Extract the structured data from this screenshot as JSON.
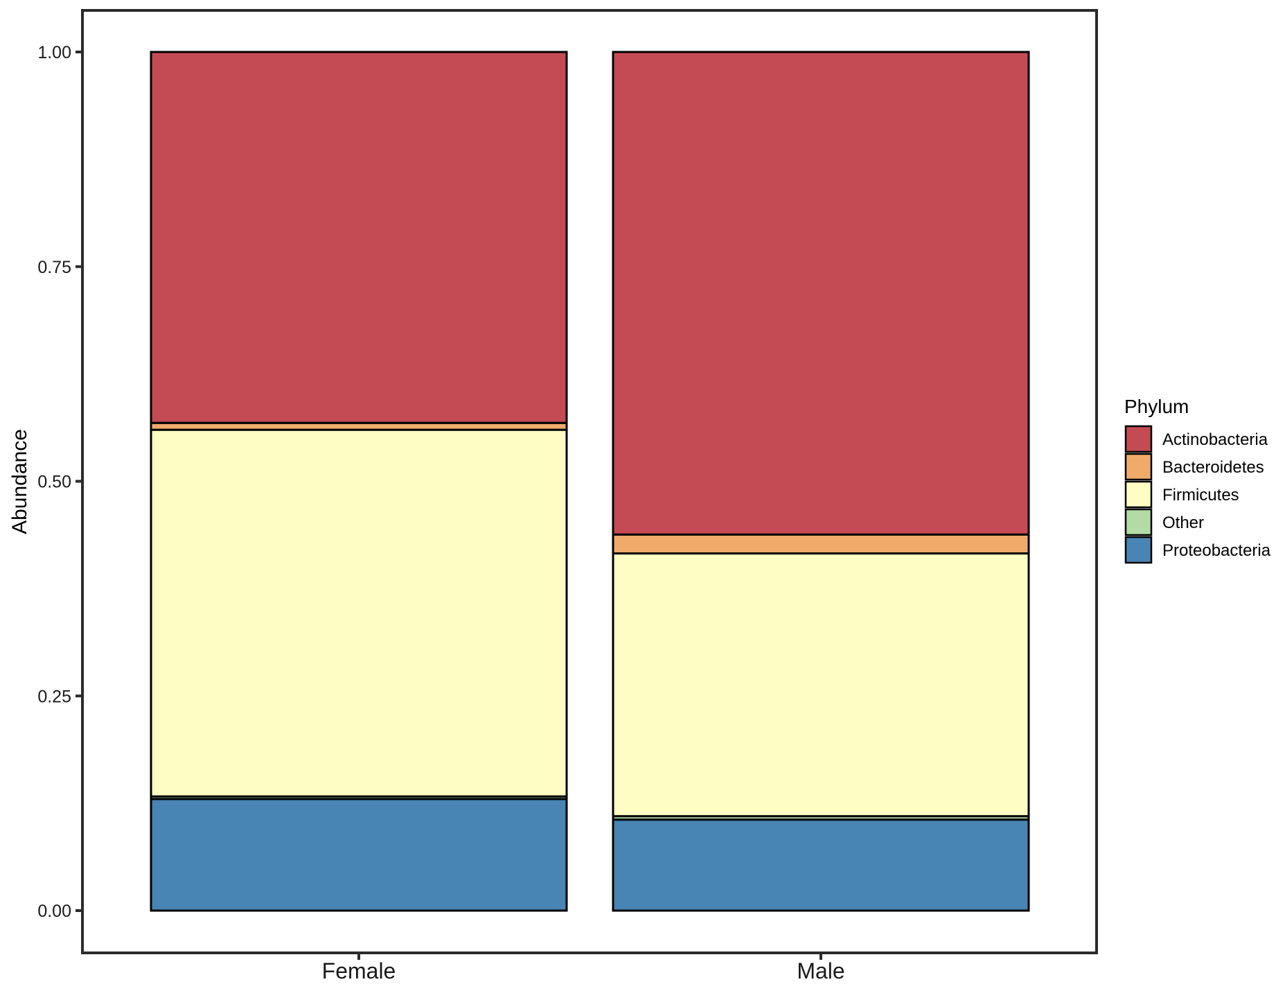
{
  "chart_data": {
    "type": "bar",
    "stacked": true,
    "categories": [
      "Female",
      "Male"
    ],
    "ylabel": "Abundance",
    "xlabel": "",
    "ylim": [
      0,
      1
    ],
    "yticks": [
      "0.00",
      "0.25",
      "0.50",
      "0.75",
      "1.00"
    ],
    "ytick_values": [
      0,
      0.25,
      0.5,
      0.75,
      1.0
    ],
    "legend": {
      "title": "Phylum",
      "position": "right",
      "entries": [
        "Actinobacteria",
        "Bacteroidetes",
        "Firmicutes",
        "Other",
        "Proteobacteria"
      ]
    },
    "series": [
      {
        "name": "Proteobacteria",
        "color": "#4884b4",
        "values": [
          0.13,
          0.106
        ]
      },
      {
        "name": "Other",
        "color": "#b2dba5",
        "values": [
          0.003,
          0.004
        ]
      },
      {
        "name": "Firmicutes",
        "color": "#fefdc3",
        "values": [
          0.427,
          0.306
        ]
      },
      {
        "name": "Bacteroidetes",
        "color": "#f0ab6b",
        "values": [
          0.008,
          0.022
        ]
      },
      {
        "name": "Actinobacteria",
        "color": "#c44b53",
        "values": [
          0.432,
          0.562
        ]
      }
    ],
    "grid": false
  }
}
